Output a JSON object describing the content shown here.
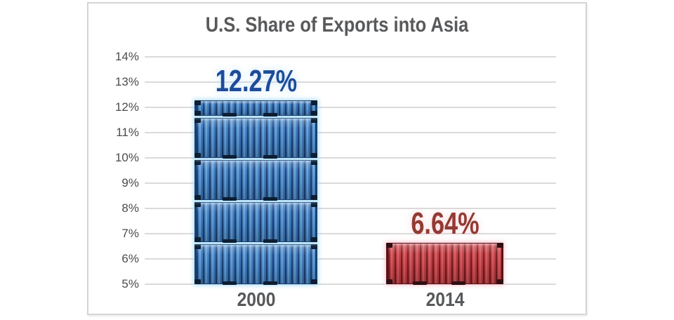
{
  "chart_data": {
    "type": "bar",
    "title": "U.S. Share of Exports into Asia",
    "categories": [
      "2000",
      "2014"
    ],
    "values": [
      12.27,
      6.64
    ],
    "value_labels": [
      "12.27%",
      "6.64%"
    ],
    "yticks": [
      14,
      13,
      12,
      11,
      10,
      9,
      8,
      7,
      6,
      5
    ],
    "ytick_suffix": "%",
    "ylim": [
      5,
      14
    ],
    "grid": true,
    "legend": "none",
    "bar_style": "stacked-shipping-containers",
    "bar_colors": [
      "#2e68b0",
      "#b3292f"
    ],
    "value_label_colors": [
      "#1e4c9a",
      "#923a33"
    ],
    "title_color": "#58595b",
    "gridline_color": "#dadada"
  }
}
